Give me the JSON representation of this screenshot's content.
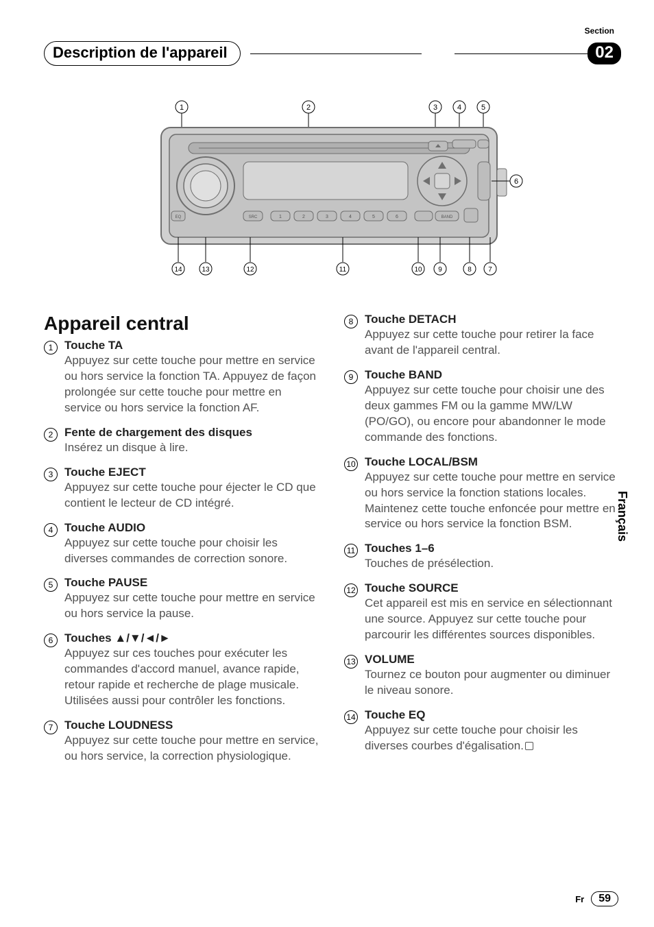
{
  "header": {
    "section_label": "Section",
    "title": "Description de l'appareil",
    "section_number": "02"
  },
  "side_tab": "Français",
  "footer": {
    "lang": "Fr",
    "page": "59"
  },
  "diagram": {
    "top_callouts": [
      "1",
      "2",
      "3",
      "4",
      "5"
    ],
    "right_callout": "6",
    "bottom_callouts": [
      "14",
      "13",
      "12",
      "11",
      "10",
      "9",
      "8",
      "7"
    ],
    "preset_labels": [
      "1",
      "2",
      "3",
      "4",
      "5",
      "6"
    ],
    "colors": {
      "stroke": "#6f6f6f",
      "fill": "#bdbdbd",
      "body": "#d0d0d0",
      "text": "#000000",
      "bg": "#ffffff"
    }
  },
  "main_heading": "Appareil central",
  "items_left": [
    {
      "n": "1",
      "title": "Touche TA",
      "body": "Appuyez sur cette touche pour mettre en service ou hors service la fonction TA. Appuyez de façon prolongée sur cette touche pour mettre en service ou hors service la fonction AF."
    },
    {
      "n": "2",
      "title": "Fente de chargement des disques",
      "body": "Insérez un disque à lire."
    },
    {
      "n": "3",
      "title": "Touche EJECT",
      "body": "Appuyez sur cette touche pour éjecter le CD que contient le lecteur de CD intégré."
    },
    {
      "n": "4",
      "title": "Touche AUDIO",
      "body": "Appuyez sur cette touche pour choisir les diverses commandes de correction sonore."
    },
    {
      "n": "5",
      "title": "Touche PAUSE",
      "body": "Appuyez sur cette touche pour mettre en service ou hors service la pause."
    },
    {
      "n": "6",
      "title": "Touches ▲/▼/◄/►",
      "body": "Appuyez sur ces touches pour exécuter les commandes d'accord manuel, avance rapide, retour rapide et recherche de plage musicale. Utilisées aussi pour contrôler les fonctions."
    },
    {
      "n": "7",
      "title": "Touche LOUDNESS",
      "body": "Appuyez sur cette touche pour mettre en service, ou hors service, la correction physiologique."
    }
  ],
  "items_right": [
    {
      "n": "8",
      "title": "Touche DETACH",
      "body": "Appuyez sur cette touche pour retirer la face avant de l'appareil central."
    },
    {
      "n": "9",
      "title": "Touche BAND",
      "body": "Appuyez sur cette touche pour choisir une des deux gammes FM ou la gamme MW/LW (PO/GO), ou encore pour abandonner le mode commande des fonctions."
    },
    {
      "n": "10",
      "title": "Touche LOCAL/BSM",
      "body": "Appuyez sur cette touche pour mettre en service ou hors service la fonction stations locales.\nMaintenez cette touche enfoncée pour mettre en service ou hors service la fonction BSM."
    },
    {
      "n": "11",
      "title": "Touches 1–6",
      "body": "Touches de présélection."
    },
    {
      "n": "12",
      "title": "Touche SOURCE",
      "body": "Cet appareil est mis en service en sélectionnant une source. Appuyez sur cette touche pour parcourir les différentes sources disponibles."
    },
    {
      "n": "13",
      "title": "VOLUME",
      "body": "Tournez ce bouton pour augmenter ou diminuer le niveau sonore."
    },
    {
      "n": "14",
      "title": "Touche EQ",
      "body": "Appuyez sur cette touche pour choisir les diverses courbes d'égalisation.",
      "end": true
    }
  ]
}
